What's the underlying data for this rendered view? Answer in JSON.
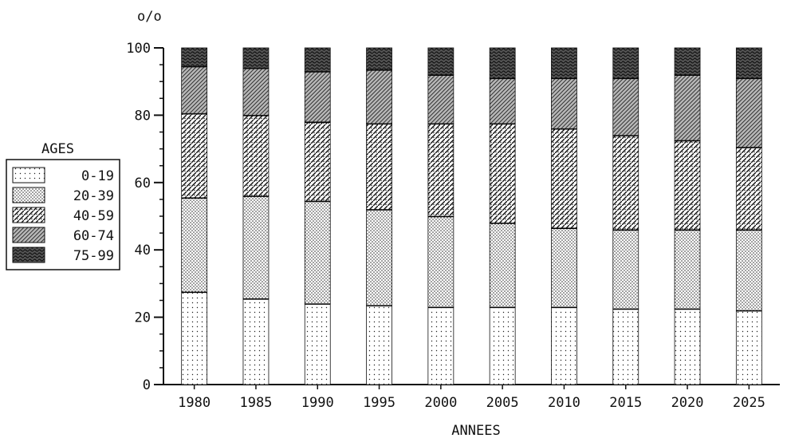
{
  "chart_data": {
    "type": "bar",
    "stacked": true,
    "title": "",
    "ylabel": "o/o",
    "xlabel": "ANNEES",
    "ylim": [
      0,
      100
    ],
    "yticks": [
      0,
      20,
      40,
      60,
      80,
      100
    ],
    "grid": false,
    "legend_position": "left",
    "legend_title": "AGES",
    "categories": [
      "1980",
      "1985",
      "1990",
      "1995",
      "2000",
      "2005",
      "2010",
      "2015",
      "2020",
      "2025"
    ],
    "series": [
      {
        "name": "0-19",
        "values": [
          27.5,
          25.5,
          24.0,
          23.5,
          23.0,
          23.0,
          23.0,
          22.5,
          22.5,
          22.0
        ]
      },
      {
        "name": "20-39",
        "values": [
          28.0,
          30.5,
          30.5,
          28.5,
          27.0,
          25.0,
          23.5,
          23.5,
          23.5,
          24.0
        ]
      },
      {
        "name": "40-59",
        "values": [
          25.0,
          24.0,
          23.5,
          25.5,
          27.5,
          29.5,
          29.5,
          28.0,
          26.5,
          24.5
        ]
      },
      {
        "name": "60-74",
        "values": [
          14.0,
          14.0,
          15.0,
          16.0,
          14.5,
          13.5,
          15.0,
          17.0,
          19.5,
          20.5
        ]
      },
      {
        "name": "75-99",
        "values": [
          5.5,
          6.0,
          7.0,
          6.5,
          8.0,
          9.0,
          9.0,
          9.0,
          8.0,
          9.0
        ]
      }
    ]
  }
}
